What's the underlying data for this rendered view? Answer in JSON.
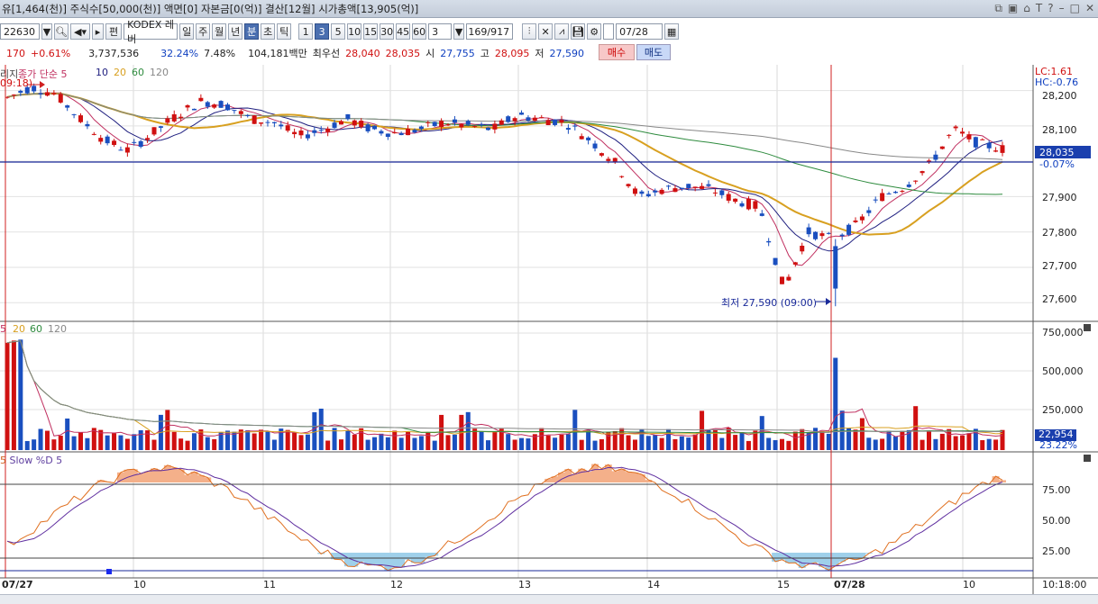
{
  "title": "유[1,464(천)] 주식수[50,000(천)] 액면[0] 자본금[0(억)] 결산[12월] 시가총액[13,905(억)]",
  "toolbar": {
    "code": "22630",
    "edit_label": "편",
    "stock_name": "KODEX 레버",
    "periods": [
      "일",
      "주",
      "월",
      "년",
      "분",
      "초",
      "틱"
    ],
    "selected_period": "분",
    "minutes": [
      "1",
      "3",
      "5",
      "10",
      "15",
      "30",
      "45",
      "60"
    ],
    "selected_minute": "3",
    "interval_value": "3",
    "count": "169/917",
    "date": "07/28"
  },
  "quote": {
    "change": "170",
    "change_pct": "+0.61%",
    "volume": "3,737,536",
    "vol_ratio": "32.24%",
    "turnover": "7.48%",
    "amount": "104,181백만",
    "best_ask_label": "최우선",
    "best_ask": "28,040",
    "best_bid": "28,035",
    "open_label": "시",
    "open": "27,755",
    "high_label": "고",
    "high": "28,095",
    "low_label": "저",
    "low": "27,590",
    "buy": "매수",
    "sell": "매도"
  },
  "price_panel": {
    "legend_prefix": "리지",
    "legend_ma": "종가 단순 5",
    "legend_10": "10",
    "legend_20": "20",
    "legend_60": "60",
    "legend_120": "120",
    "left_marker": "09:18)",
    "lc": "LC:1.61",
    "hc": "HC:-0.76",
    "y_ticks": [
      "28,200",
      "28,100",
      "28,000",
      "27,900",
      "27,800",
      "27,700",
      "27,600"
    ],
    "current_price": "28,035",
    "current_pct": "-0.07%",
    "low_annotation": "최저 27,590 (09:00)"
  },
  "volume_panel": {
    "legend": [
      "5",
      "20",
      "60",
      "120"
    ],
    "y_ticks": [
      "750,000",
      "500,000",
      "250,000"
    ],
    "current": "22,954",
    "pct": "23.22%"
  },
  "stoch_panel": {
    "legend": "Slow %D 5",
    "y_ticks": [
      "75.00",
      "50.00",
      "25.00"
    ]
  },
  "x_axis": {
    "labels": [
      "07/27",
      "10",
      "11",
      "12",
      "13",
      "14",
      "15",
      "07/28",
      "10"
    ],
    "time": "10:18:00"
  },
  "colors": {
    "up": "#d01010",
    "down": "#1a4fbf",
    "ma5": "#c03060",
    "ma10": "#202080",
    "ma20": "#d8a020",
    "ma60": "#2e8b3e",
    "ma120": "#888888"
  },
  "chart_data": {
    "type": "candlestick",
    "title": "",
    "candles_approx": [
      [
        28120,
        28200,
        28050,
        28180
      ],
      [
        28180,
        28230,
        28150,
        28210
      ],
      [
        28210,
        28220,
        28170,
        28190
      ],
      [
        28190,
        28200,
        28100,
        28120
      ],
      [
        28120,
        28140,
        28030,
        28060
      ],
      [
        28060,
        28080,
        28010,
        28030
      ],
      [
        28030,
        28090,
        28020,
        28080
      ],
      [
        28080,
        28140,
        28070,
        28130
      ],
      [
        28130,
        28190,
        28120,
        28170
      ],
      [
        28170,
        28200,
        28140,
        28160
      ],
      [
        28160,
        28180,
        28100,
        28120
      ],
      [
        28120,
        28140,
        28090,
        28110
      ],
      [
        28110,
        28130,
        28060,
        28070
      ],
      [
        28070,
        28100,
        28050,
        28090
      ],
      [
        28090,
        28130,
        28080,
        28120
      ],
      [
        28120,
        28130,
        28080,
        28090
      ],
      [
        28090,
        28110,
        28070,
        28080
      ],
      [
        28080,
        28100,
        28070,
        28090
      ],
      [
        28090,
        28120,
        28080,
        28110
      ],
      [
        28110,
        28120,
        28090,
        28100
      ],
      [
        28100,
        28110,
        28080,
        28090
      ],
      [
        28090,
        28140,
        28080,
        28130
      ],
      [
        28130,
        28150,
        28110,
        28120
      ],
      [
        28120,
        28130,
        28100,
        28110
      ],
      [
        28110,
        28120,
        28040,
        28060
      ],
      [
        28060,
        28070,
        27980,
        28000
      ],
      [
        28000,
        28010,
        27870,
        27900
      ],
      [
        27900,
        27940,
        27880,
        27920
      ],
      [
        27920,
        27950,
        27890,
        27930
      ],
      [
        27930,
        27950,
        27910,
        27920
      ],
      [
        27920,
        27930,
        27880,
        27890
      ],
      [
        27890,
        27900,
        27860,
        27870
      ],
      [
        27760,
        27790,
        27590,
        27640
      ],
      [
        27640,
        27820,
        27620,
        27800
      ],
      [
        27800,
        27830,
        27760,
        27780
      ],
      [
        27780,
        27830,
        27770,
        27820
      ],
      [
        27820,
        27920,
        27810,
        27900
      ],
      [
        27900,
        27940,
        27890,
        27930
      ],
      [
        27930,
        28000,
        27920,
        27990
      ],
      [
        27990,
        28100,
        27980,
        28090
      ],
      [
        28090,
        28095,
        28040,
        28050
      ],
      [
        28050,
        28070,
        28030,
        28035
      ]
    ],
    "ylim": [
      27560,
      28260
    ]
  }
}
